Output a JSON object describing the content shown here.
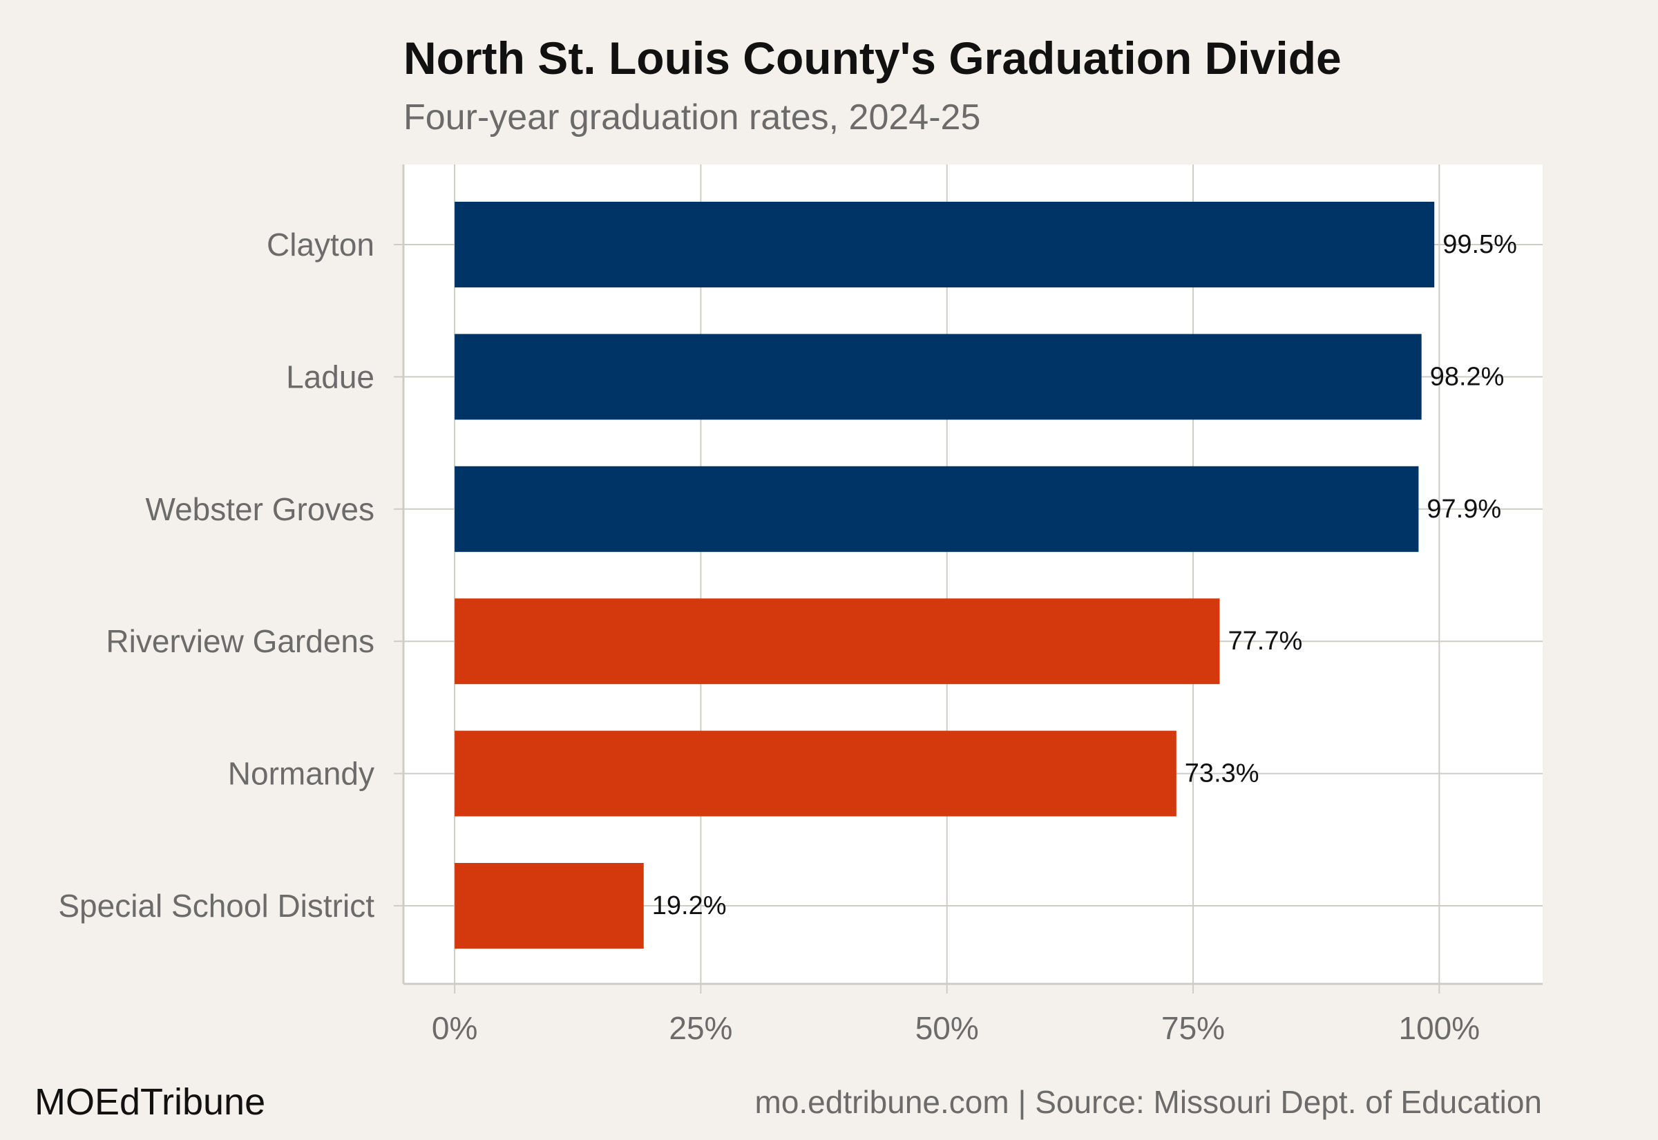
{
  "header": {
    "title": "North St. Louis County's Graduation Divide",
    "subtitle": "Four-year graduation rates, 2024-25"
  },
  "footer": {
    "brand": "MOEdTribune",
    "source": "mo.edtribune.com | Source: Missouri Dept. of Education"
  },
  "colors": {
    "background": "#f4f1ec",
    "panel": "#ffffff",
    "grid": "#cfccc6",
    "high_group": "#003366",
    "low_group": "#d4380d",
    "tick_text": "#6b6b6b",
    "label_text": "#111111"
  },
  "chart_data": {
    "type": "bar",
    "orientation": "horizontal",
    "categories": [
      "Clayton",
      "Ladue",
      "Webster Groves",
      "Riverview Gardens",
      "Normandy",
      "Special School District"
    ],
    "values": [
      99.5,
      98.2,
      97.9,
      77.7,
      73.3,
      19.2
    ],
    "data_labels": [
      "99.5%",
      "98.2%",
      "97.9%",
      "77.7%",
      "73.3%",
      "19.2%"
    ],
    "bar_colors": [
      "#003366",
      "#003366",
      "#003366",
      "#d4380d",
      "#d4380d",
      "#d4380d"
    ],
    "x_ticks": [
      0,
      25,
      50,
      75,
      100
    ],
    "x_tick_labels": [
      "0%",
      "25%",
      "50%",
      "75%",
      "100%"
    ],
    "xlim": [
      -5.2,
      110.5
    ],
    "grid": true,
    "legend": "none"
  }
}
